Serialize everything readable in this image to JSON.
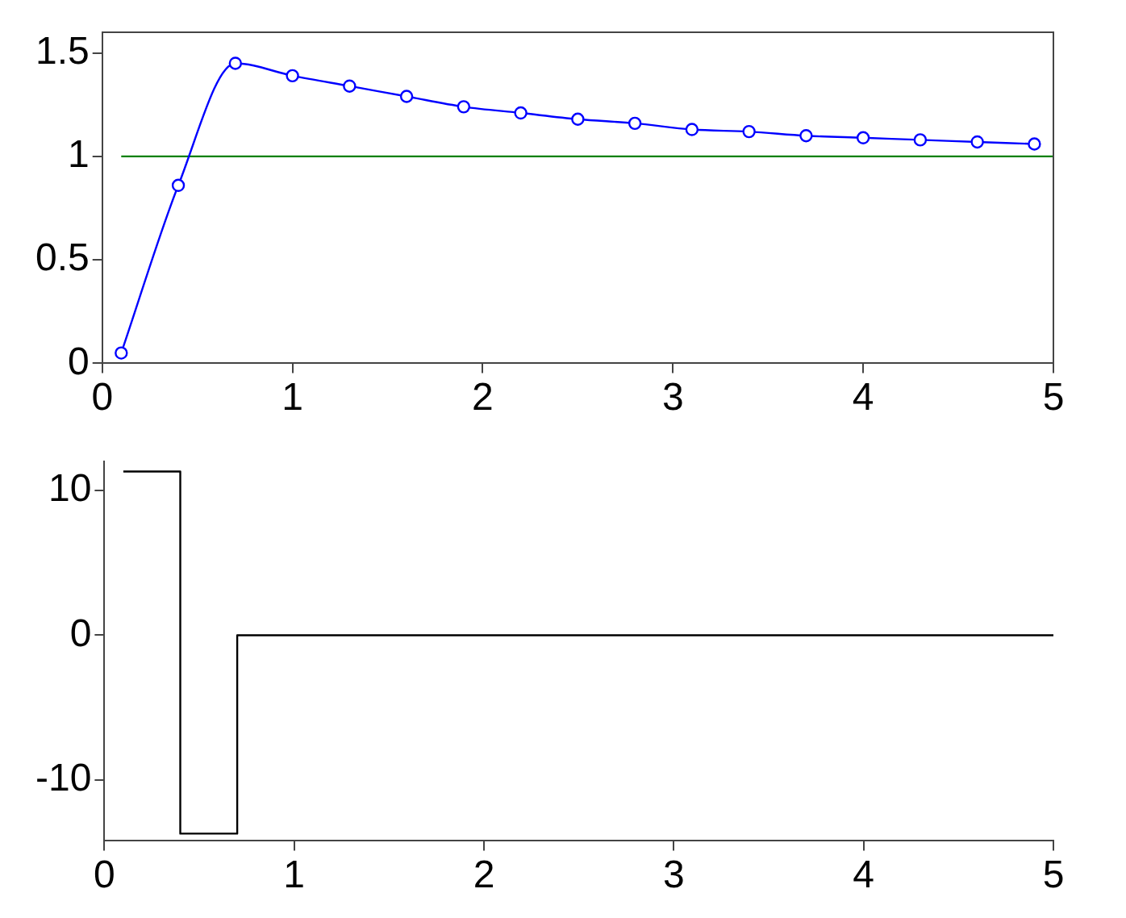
{
  "chart_data": [
    {
      "type": "line",
      "x": [
        0.1,
        0.4,
        0.7,
        1.0,
        1.3,
        1.6,
        1.9,
        2.2,
        2.5,
        2.8,
        3.1,
        3.4,
        3.7,
        4.0,
        4.3,
        4.6,
        4.9
      ],
      "series": [
        {
          "color": "#0000ff",
          "values": [
            0.05,
            0.86,
            1.45,
            1.39,
            1.34,
            1.29,
            1.24,
            1.21,
            1.18,
            1.16,
            1.13,
            1.12,
            1.1,
            1.09,
            1.08,
            1.07,
            1.06
          ]
        },
        {
          "type": "line",
          "color": "#008000",
          "marker": "none",
          "x": [
            0.1,
            5
          ],
          "values": [
            1,
            1
          ]
        }
      ],
      "xlim": [
        0,
        5
      ],
      "xticks": [
        0,
        1,
        2,
        3,
        4,
        5
      ],
      "ylim": [
        0,
        1.6
      ],
      "yticks": [
        0,
        0.5,
        1,
        1.5
      ],
      "marker": "circle",
      "grid": false,
      "legend": false
    },
    {
      "type": "step",
      "x": [
        0.1,
        0.4,
        0.7,
        5
      ],
      "series": [
        {
          "color": "#000000",
          "values": [
            11.3,
            -13.7,
            0,
            0
          ]
        }
      ],
      "xlim": [
        0,
        5
      ],
      "xticks": [
        0,
        1,
        2,
        3,
        4,
        5
      ],
      "ylim": [
        -14.2,
        12
      ],
      "yticks": [
        -10,
        0,
        10
      ],
      "marker": "none",
      "grid": false,
      "legend": false
    }
  ]
}
